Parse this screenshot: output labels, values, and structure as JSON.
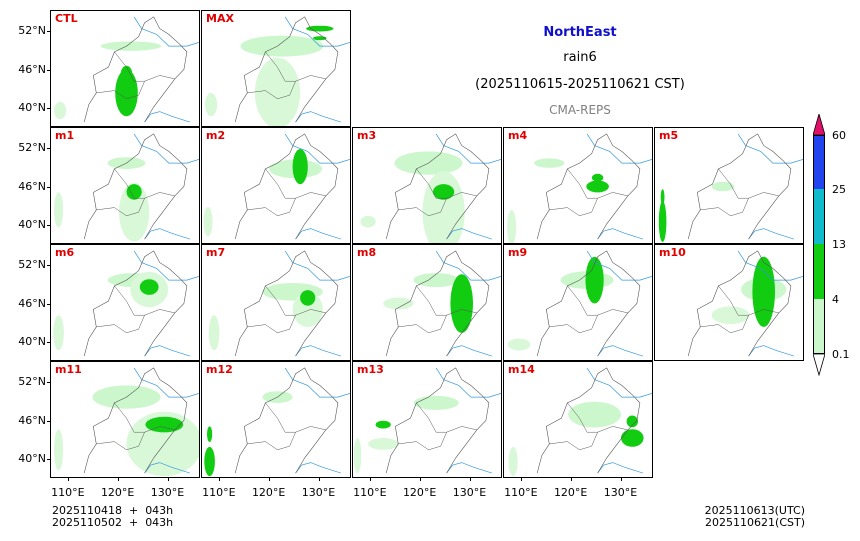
{
  "title": {
    "region": "NorthEast",
    "variable": "rain6",
    "period": "(2025110615-2025110621 CST)",
    "source": "CMA-REPS"
  },
  "colors": {
    "region": "#1010cc",
    "label": "#e00000",
    "source": "#808080"
  },
  "panels": [
    {
      "label": "CTL",
      "blobs": [
        [
          0.53,
          0.3,
          0.4,
          0.08
        ],
        [
          0.5,
          0.7,
          0.15,
          0.4
        ],
        [
          0.06,
          0.85,
          0.08,
          0.15
        ]
      ]
    },
    {
      "label": "MAX",
      "blobs": [
        [
          0.53,
          0.3,
          0.55,
          0.18
        ],
        [
          0.78,
          0.15,
          0.18,
          0.05
        ],
        [
          0.5,
          0.7,
          0.3,
          0.6
        ],
        [
          0.06,
          0.8,
          0.08,
          0.2
        ]
      ]
    },
    {
      "label": "m1",
      "blobs": [
        [
          0.5,
          0.3,
          0.25,
          0.1
        ],
        [
          0.55,
          0.72,
          0.2,
          0.5
        ],
        [
          0.05,
          0.7,
          0.06,
          0.3
        ]
      ]
    },
    {
      "label": "m2",
      "blobs": [
        [
          0.62,
          0.35,
          0.35,
          0.16
        ],
        [
          0.65,
          0.33,
          0.1,
          0.3
        ],
        [
          0.04,
          0.8,
          0.06,
          0.25
        ]
      ]
    },
    {
      "label": "m3",
      "blobs": [
        [
          0.5,
          0.3,
          0.45,
          0.2
        ],
        [
          0.6,
          0.72,
          0.28,
          0.7
        ],
        [
          0.1,
          0.8,
          0.1,
          0.1
        ]
      ]
    },
    {
      "label": "m4",
      "blobs": [
        [
          0.3,
          0.3,
          0.2,
          0.08
        ],
        [
          0.62,
          0.5,
          0.15,
          0.1
        ],
        [
          0.05,
          0.85,
          0.06,
          0.3
        ]
      ]
    },
    {
      "label": "m5",
      "blobs": [
        [
          0.45,
          0.5,
          0.15,
          0.08
        ],
        [
          0.05,
          0.8,
          0.05,
          0.35
        ]
      ]
    },
    {
      "label": "m6",
      "blobs": [
        [
          0.55,
          0.3,
          0.35,
          0.12
        ],
        [
          0.65,
          0.38,
          0.25,
          0.3
        ],
        [
          0.05,
          0.75,
          0.07,
          0.3
        ]
      ]
    },
    {
      "label": "m7",
      "blobs": [
        [
          0.6,
          0.4,
          0.4,
          0.15
        ],
        [
          0.7,
          0.55,
          0.2,
          0.3
        ],
        [
          0.08,
          0.75,
          0.07,
          0.3
        ]
      ]
    },
    {
      "label": "m8",
      "blobs": [
        [
          0.55,
          0.3,
          0.3,
          0.12
        ],
        [
          0.72,
          0.5,
          0.15,
          0.5
        ],
        [
          0.3,
          0.5,
          0.2,
          0.1
        ]
      ]
    },
    {
      "label": "m9",
      "blobs": [
        [
          0.55,
          0.3,
          0.35,
          0.15
        ],
        [
          0.6,
          0.3,
          0.12,
          0.4
        ],
        [
          0.1,
          0.85,
          0.15,
          0.1
        ]
      ]
    },
    {
      "label": "m10",
      "blobs": [
        [
          0.72,
          0.38,
          0.3,
          0.2
        ],
        [
          0.72,
          0.4,
          0.15,
          0.6
        ],
        [
          0.5,
          0.6,
          0.25,
          0.15
        ]
      ]
    },
    {
      "label": "m11",
      "blobs": [
        [
          0.5,
          0.3,
          0.45,
          0.2
        ],
        [
          0.75,
          0.7,
          0.5,
          0.55
        ],
        [
          0.05,
          0.75,
          0.06,
          0.35
        ]
      ]
    },
    {
      "label": "m12",
      "blobs": [
        [
          0.5,
          0.3,
          0.2,
          0.1
        ],
        [
          0.05,
          0.85,
          0.07,
          0.25
        ]
      ]
    },
    {
      "label": "m13",
      "blobs": [
        [
          0.55,
          0.35,
          0.3,
          0.12
        ],
        [
          0.2,
          0.7,
          0.2,
          0.1
        ],
        [
          0.03,
          0.8,
          0.05,
          0.3
        ]
      ]
    },
    {
      "label": "m14",
      "blobs": [
        [
          0.6,
          0.45,
          0.35,
          0.22
        ],
        [
          0.85,
          0.65,
          0.15,
          0.15
        ],
        [
          0.06,
          0.85,
          0.06,
          0.25
        ]
      ]
    }
  ],
  "y_ticks": [
    "52°N",
    "46°N",
    "40°N"
  ],
  "x_ticks": [
    "110°E",
    "120°E",
    "130°E"
  ],
  "colorbar": {
    "levels": [
      "0.1",
      "4",
      "13",
      "25",
      "60"
    ],
    "colors": [
      "#ffffff",
      "#ccf7cc",
      "#11cc11",
      "#11bbcc",
      "#2244ee",
      "#e0106a"
    ]
  },
  "footer": {
    "left_line1": "2025110418  +  043h",
    "left_line2": "2025110502  +  043h",
    "right_line1": "2025110613(UTC)",
    "right_line2": "2025110621(CST)"
  }
}
